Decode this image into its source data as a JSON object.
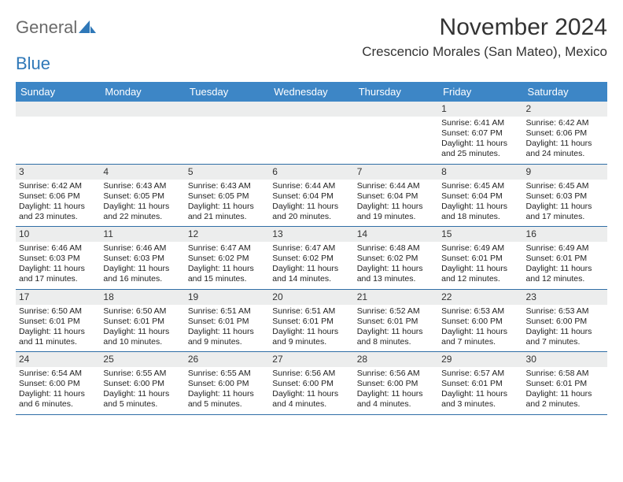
{
  "header": {
    "logo_text1": "General",
    "logo_text2": "Blue",
    "month_title": "November 2024",
    "location": "Crescencio Morales (San Mateo), Mexico"
  },
  "colors": {
    "header_bg": "#3d86c6",
    "header_text": "#ffffff",
    "daynum_bg": "#eceded",
    "row_border": "#2f6ea6",
    "title_color": "#333333",
    "logo_gray": "#6a6a6a",
    "logo_blue": "#2f78b8"
  },
  "dow": [
    "Sunday",
    "Monday",
    "Tuesday",
    "Wednesday",
    "Thursday",
    "Friday",
    "Saturday"
  ],
  "weeks": [
    [
      {
        "n": "",
        "lines": []
      },
      {
        "n": "",
        "lines": []
      },
      {
        "n": "",
        "lines": []
      },
      {
        "n": "",
        "lines": []
      },
      {
        "n": "",
        "lines": []
      },
      {
        "n": "1",
        "lines": [
          "Sunrise: 6:41 AM",
          "Sunset: 6:07 PM",
          "Daylight: 11 hours and 25 minutes."
        ]
      },
      {
        "n": "2",
        "lines": [
          "Sunrise: 6:42 AM",
          "Sunset: 6:06 PM",
          "Daylight: 11 hours and 24 minutes."
        ]
      }
    ],
    [
      {
        "n": "3",
        "lines": [
          "Sunrise: 6:42 AM",
          "Sunset: 6:06 PM",
          "Daylight: 11 hours and 23 minutes."
        ]
      },
      {
        "n": "4",
        "lines": [
          "Sunrise: 6:43 AM",
          "Sunset: 6:05 PM",
          "Daylight: 11 hours and 22 minutes."
        ]
      },
      {
        "n": "5",
        "lines": [
          "Sunrise: 6:43 AM",
          "Sunset: 6:05 PM",
          "Daylight: 11 hours and 21 minutes."
        ]
      },
      {
        "n": "6",
        "lines": [
          "Sunrise: 6:44 AM",
          "Sunset: 6:04 PM",
          "Daylight: 11 hours and 20 minutes."
        ]
      },
      {
        "n": "7",
        "lines": [
          "Sunrise: 6:44 AM",
          "Sunset: 6:04 PM",
          "Daylight: 11 hours and 19 minutes."
        ]
      },
      {
        "n": "8",
        "lines": [
          "Sunrise: 6:45 AM",
          "Sunset: 6:04 PM",
          "Daylight: 11 hours and 18 minutes."
        ]
      },
      {
        "n": "9",
        "lines": [
          "Sunrise: 6:45 AM",
          "Sunset: 6:03 PM",
          "Daylight: 11 hours and 17 minutes."
        ]
      }
    ],
    [
      {
        "n": "10",
        "lines": [
          "Sunrise: 6:46 AM",
          "Sunset: 6:03 PM",
          "Daylight: 11 hours and 17 minutes."
        ]
      },
      {
        "n": "11",
        "lines": [
          "Sunrise: 6:46 AM",
          "Sunset: 6:03 PM",
          "Daylight: 11 hours and 16 minutes."
        ]
      },
      {
        "n": "12",
        "lines": [
          "Sunrise: 6:47 AM",
          "Sunset: 6:02 PM",
          "Daylight: 11 hours and 15 minutes."
        ]
      },
      {
        "n": "13",
        "lines": [
          "Sunrise: 6:47 AM",
          "Sunset: 6:02 PM",
          "Daylight: 11 hours and 14 minutes."
        ]
      },
      {
        "n": "14",
        "lines": [
          "Sunrise: 6:48 AM",
          "Sunset: 6:02 PM",
          "Daylight: 11 hours and 13 minutes."
        ]
      },
      {
        "n": "15",
        "lines": [
          "Sunrise: 6:49 AM",
          "Sunset: 6:01 PM",
          "Daylight: 11 hours and 12 minutes."
        ]
      },
      {
        "n": "16",
        "lines": [
          "Sunrise: 6:49 AM",
          "Sunset: 6:01 PM",
          "Daylight: 11 hours and 12 minutes."
        ]
      }
    ],
    [
      {
        "n": "17",
        "lines": [
          "Sunrise: 6:50 AM",
          "Sunset: 6:01 PM",
          "Daylight: 11 hours and 11 minutes."
        ]
      },
      {
        "n": "18",
        "lines": [
          "Sunrise: 6:50 AM",
          "Sunset: 6:01 PM",
          "Daylight: 11 hours and 10 minutes."
        ]
      },
      {
        "n": "19",
        "lines": [
          "Sunrise: 6:51 AM",
          "Sunset: 6:01 PM",
          "Daylight: 11 hours and 9 minutes."
        ]
      },
      {
        "n": "20",
        "lines": [
          "Sunrise: 6:51 AM",
          "Sunset: 6:01 PM",
          "Daylight: 11 hours and 9 minutes."
        ]
      },
      {
        "n": "21",
        "lines": [
          "Sunrise: 6:52 AM",
          "Sunset: 6:01 PM",
          "Daylight: 11 hours and 8 minutes."
        ]
      },
      {
        "n": "22",
        "lines": [
          "Sunrise: 6:53 AM",
          "Sunset: 6:00 PM",
          "Daylight: 11 hours and 7 minutes."
        ]
      },
      {
        "n": "23",
        "lines": [
          "Sunrise: 6:53 AM",
          "Sunset: 6:00 PM",
          "Daylight: 11 hours and 7 minutes."
        ]
      }
    ],
    [
      {
        "n": "24",
        "lines": [
          "Sunrise: 6:54 AM",
          "Sunset: 6:00 PM",
          "Daylight: 11 hours and 6 minutes."
        ]
      },
      {
        "n": "25",
        "lines": [
          "Sunrise: 6:55 AM",
          "Sunset: 6:00 PM",
          "Daylight: 11 hours and 5 minutes."
        ]
      },
      {
        "n": "26",
        "lines": [
          "Sunrise: 6:55 AM",
          "Sunset: 6:00 PM",
          "Daylight: 11 hours and 5 minutes."
        ]
      },
      {
        "n": "27",
        "lines": [
          "Sunrise: 6:56 AM",
          "Sunset: 6:00 PM",
          "Daylight: 11 hours and 4 minutes."
        ]
      },
      {
        "n": "28",
        "lines": [
          "Sunrise: 6:56 AM",
          "Sunset: 6:00 PM",
          "Daylight: 11 hours and 4 minutes."
        ]
      },
      {
        "n": "29",
        "lines": [
          "Sunrise: 6:57 AM",
          "Sunset: 6:01 PM",
          "Daylight: 11 hours and 3 minutes."
        ]
      },
      {
        "n": "30",
        "lines": [
          "Sunrise: 6:58 AM",
          "Sunset: 6:01 PM",
          "Daylight: 11 hours and 2 minutes."
        ]
      }
    ]
  ]
}
